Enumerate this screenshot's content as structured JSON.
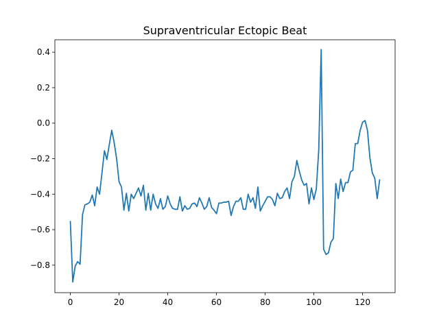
{
  "chart_data": {
    "type": "line",
    "title": "Supraventricular Ectopic Beat",
    "xlabel": "",
    "ylabel": "",
    "xlim": [
      -6.35,
      133.35
    ],
    "ylim": [
      -0.955,
      0.47
    ],
    "x_ticks": [
      0,
      20,
      40,
      60,
      80,
      100,
      120
    ],
    "y_ticks": [
      -0.8,
      -0.6,
      -0.4,
      -0.2,
      0.0,
      0.2,
      0.4
    ],
    "x_tick_labels": [
      "0",
      "20",
      "40",
      "60",
      "80",
      "100",
      "120"
    ],
    "y_tick_labels": [
      "−0.8",
      "−0.6",
      "−0.4",
      "−0.2",
      "0.0",
      "0.2",
      "0.4"
    ],
    "grid": false,
    "legend": "none",
    "series": [
      {
        "color": "#1f77b4",
        "x": [
          0,
          1,
          2,
          3,
          4,
          5,
          6,
          7,
          8,
          9,
          10,
          11,
          12,
          13,
          14,
          15,
          16,
          17,
          18,
          19,
          20,
          21,
          22,
          23,
          24,
          25,
          26,
          27,
          28,
          29,
          30,
          31,
          32,
          33,
          34,
          35,
          36,
          37,
          38,
          39,
          40,
          41,
          42,
          43,
          44,
          45,
          46,
          47,
          48,
          49,
          50,
          51,
          52,
          53,
          54,
          55,
          56,
          57,
          58,
          59,
          60,
          61,
          62,
          63,
          64,
          65,
          66,
          67,
          68,
          69,
          70,
          71,
          72,
          73,
          74,
          75,
          76,
          77,
          78,
          79,
          80,
          81,
          82,
          83,
          84,
          85,
          86,
          87,
          88,
          89,
          90,
          91,
          92,
          93,
          94,
          95,
          96,
          97,
          98,
          99,
          100,
          101,
          102,
          103,
          104,
          105,
          106,
          107,
          108,
          109,
          110,
          111,
          112,
          113,
          114,
          115,
          116,
          117,
          118,
          119,
          120,
          121,
          122,
          123,
          124,
          125,
          126,
          127
        ],
        "values": [
          -0.555,
          -0.895,
          -0.805,
          -0.78,
          -0.795,
          -0.515,
          -0.46,
          -0.455,
          -0.445,
          -0.405,
          -0.465,
          -0.36,
          -0.4,
          -0.28,
          -0.155,
          -0.205,
          -0.12,
          -0.04,
          -0.11,
          -0.2,
          -0.33,
          -0.36,
          -0.49,
          -0.395,
          -0.495,
          -0.4,
          -0.425,
          -0.395,
          -0.365,
          -0.41,
          -0.35,
          -0.49,
          -0.395,
          -0.49,
          -0.4,
          -0.455,
          -0.48,
          -0.425,
          -0.485,
          -0.47,
          -0.41,
          -0.455,
          -0.48,
          -0.485,
          -0.485,
          -0.415,
          -0.495,
          -0.465,
          -0.485,
          -0.48,
          -0.455,
          -0.45,
          -0.47,
          -0.42,
          -0.45,
          -0.485,
          -0.47,
          -0.42,
          -0.475,
          -0.49,
          -0.51,
          -0.45,
          -0.45,
          -0.445,
          -0.445,
          -0.44,
          -0.52,
          -0.47,
          -0.44,
          -0.44,
          -0.42,
          -0.485,
          -0.485,
          -0.4,
          -0.445,
          -0.42,
          -0.48,
          -0.36,
          -0.495,
          -0.465,
          -0.44,
          -0.415,
          -0.415,
          -0.43,
          -0.465,
          -0.395,
          -0.425,
          -0.42,
          -0.385,
          -0.365,
          -0.425,
          -0.33,
          -0.3,
          -0.21,
          -0.27,
          -0.32,
          -0.35,
          -0.34,
          -0.455,
          -0.365,
          -0.43,
          -0.37,
          -0.15,
          0.415,
          -0.71,
          -0.74,
          -0.73,
          -0.67,
          -0.65,
          -0.34,
          -0.425,
          -0.315,
          -0.385,
          -0.335,
          -0.335,
          -0.275,
          -0.265,
          -0.115,
          -0.115,
          -0.04,
          0.005,
          0.015,
          -0.04,
          -0.195,
          -0.28,
          -0.31,
          -0.425,
          -0.32
        ]
      }
    ]
  }
}
